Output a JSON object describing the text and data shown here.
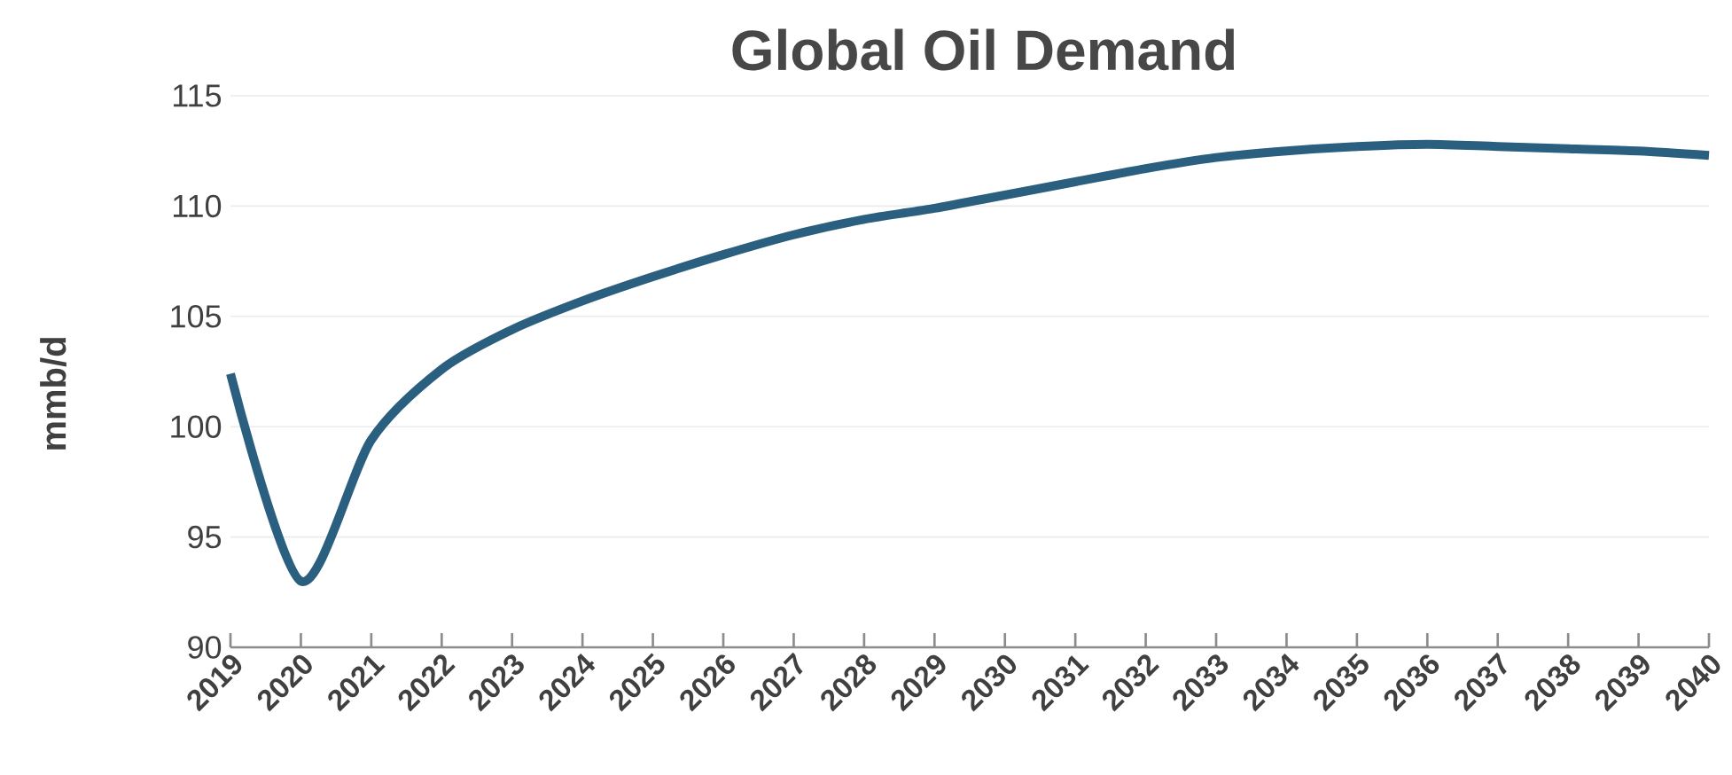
{
  "chart_data": {
    "type": "line",
    "title": "Global Oil Demand",
    "ylabel": "mmb/d",
    "categories": [
      "2019",
      "2020",
      "2021",
      "2022",
      "2023",
      "2024",
      "2025",
      "2026",
      "2027",
      "2028",
      "2029",
      "2030",
      "2031",
      "2032",
      "2033",
      "2034",
      "2035",
      "2036",
      "2037",
      "2038",
      "2039",
      "2040"
    ],
    "series": [
      {
        "color": "#2a5f7f",
        "values": [
          102.4,
          93.0,
          99.4,
          102.6,
          104.4,
          105.7,
          106.8,
          107.8,
          108.7,
          109.4,
          109.9,
          110.5,
          111.1,
          111.7,
          112.2,
          112.5,
          112.7,
          112.8,
          112.7,
          112.6,
          112.5,
          112.3
        ]
      }
    ],
    "ylim": [
      90,
      115
    ],
    "yticks": [
      90,
      95,
      100,
      105,
      110,
      115
    ],
    "grid": "y",
    "marker": "none",
    "line_style": "solid"
  }
}
